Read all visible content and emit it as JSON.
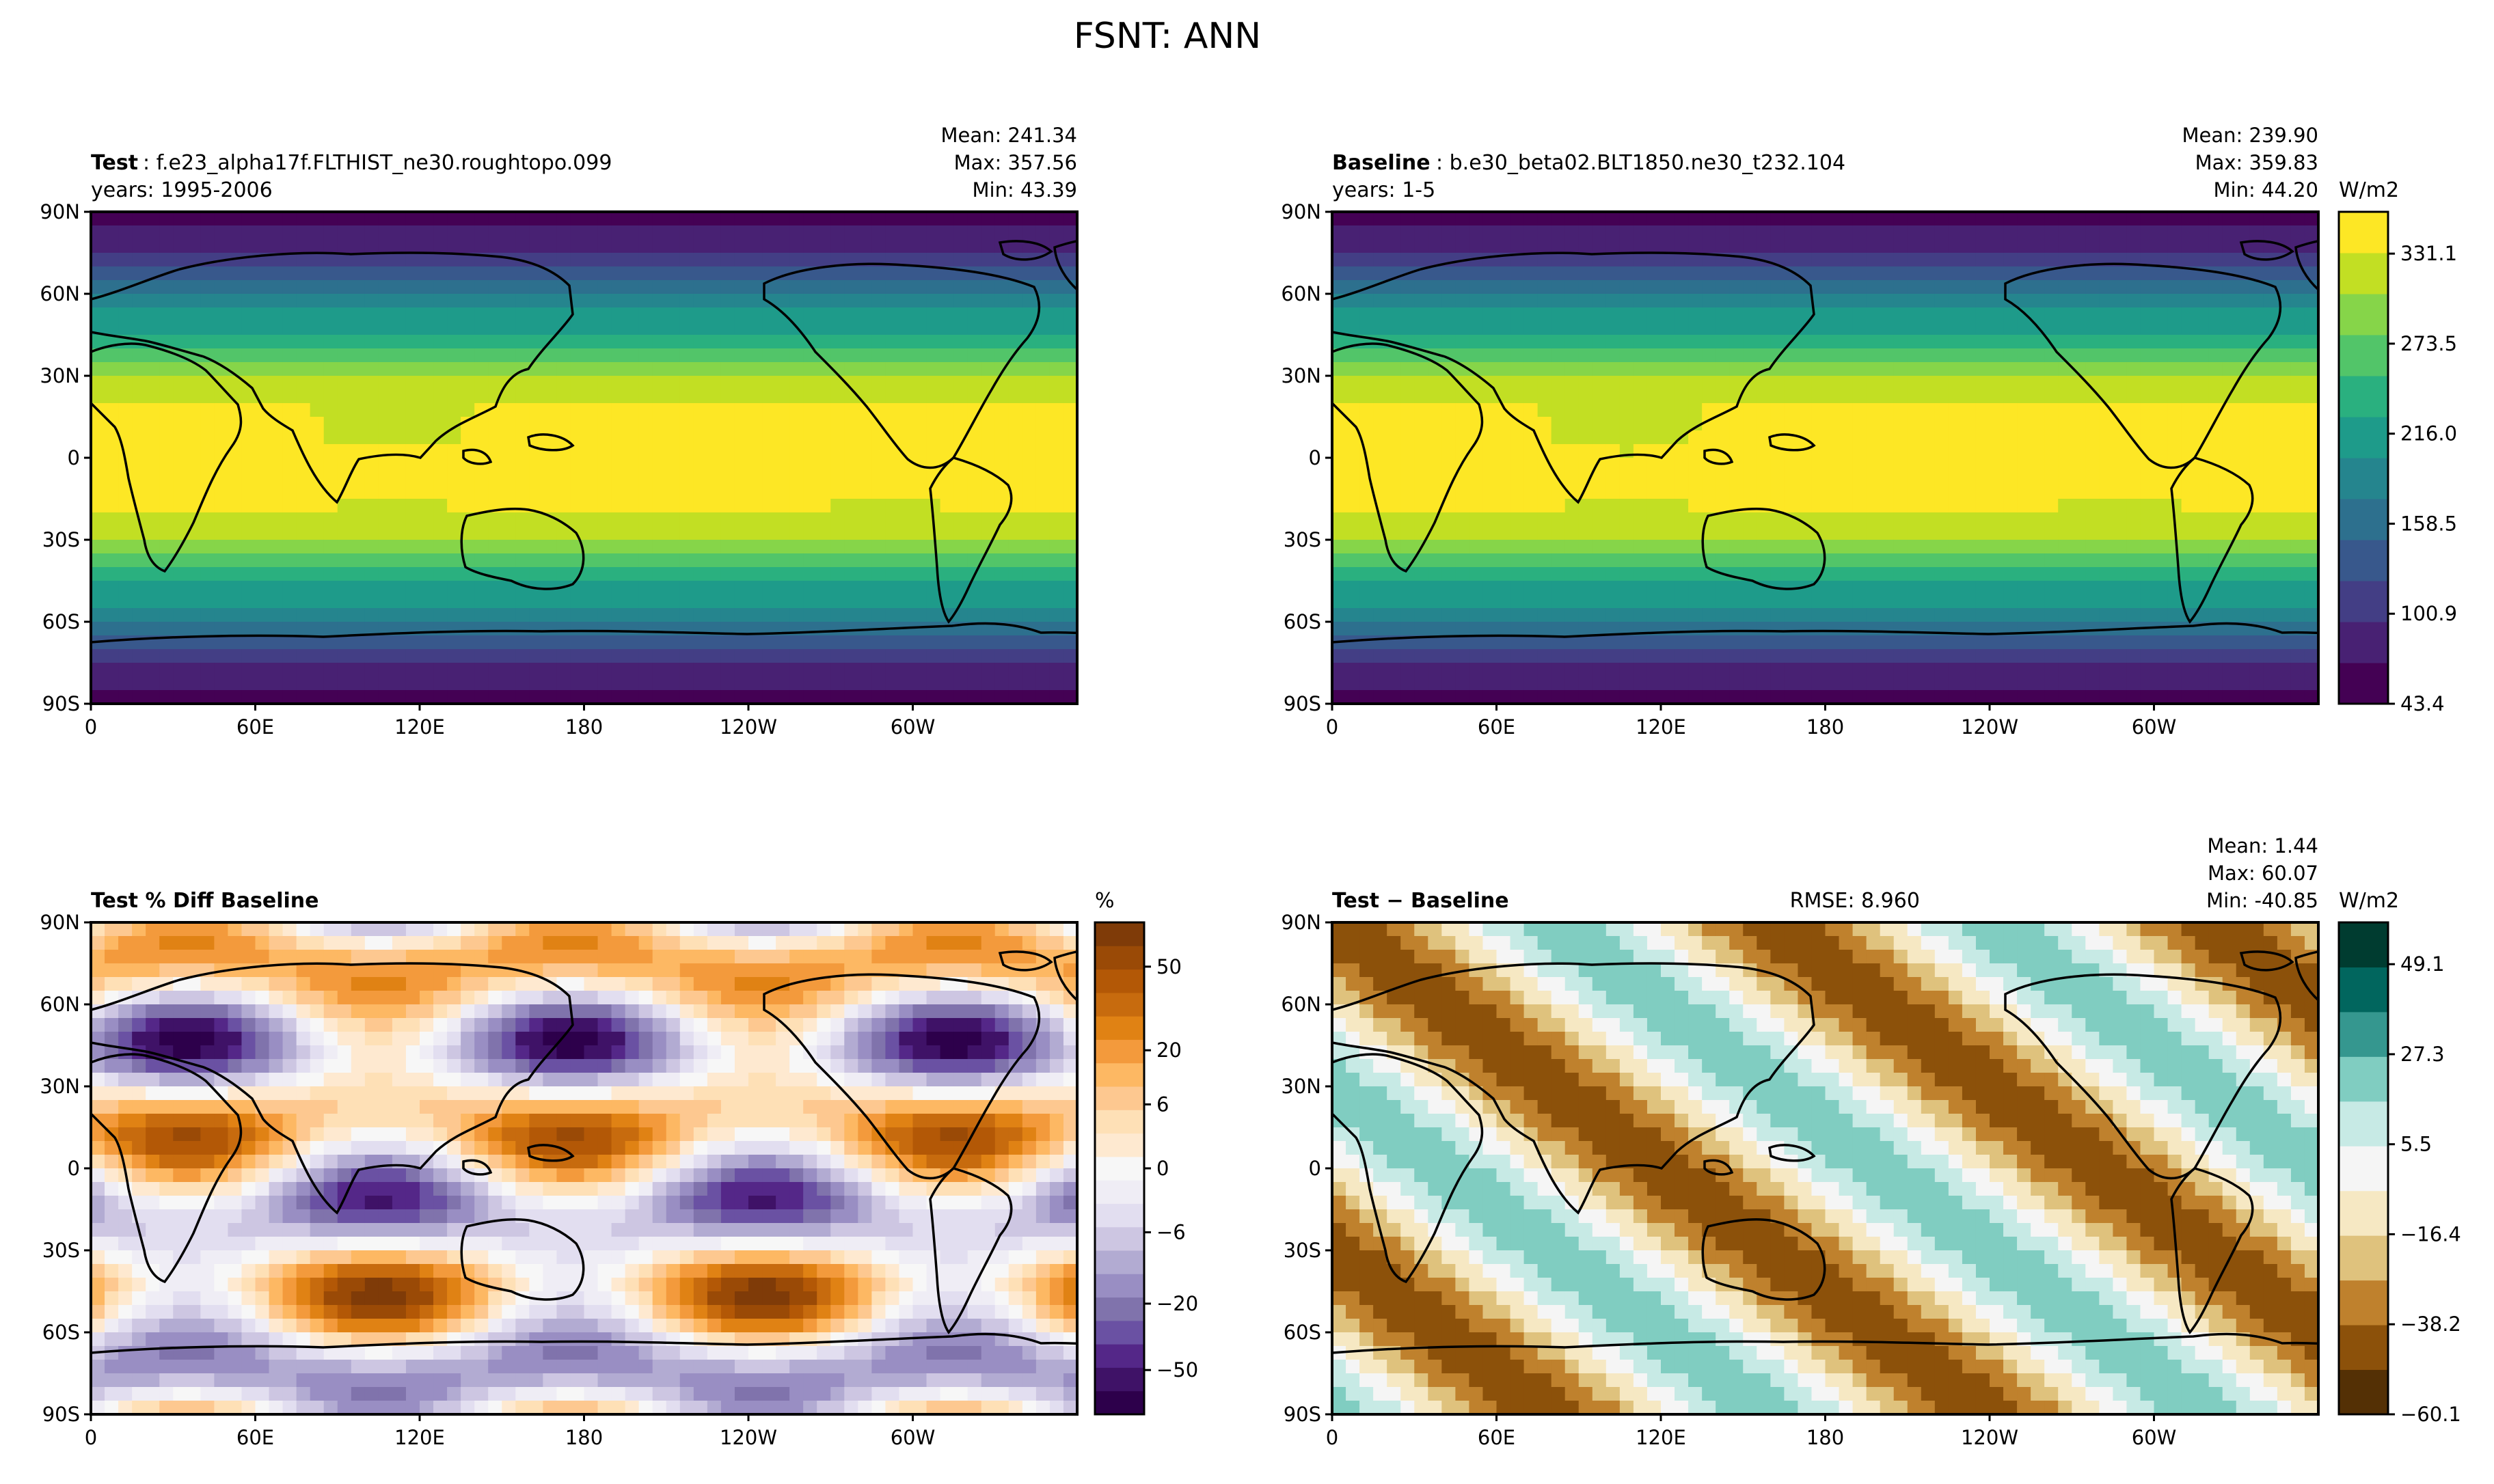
{
  "figure": {
    "title": "FSNT: ANN"
  },
  "axes": {
    "lat_ticks": [
      "90N",
      "60N",
      "30N",
      "0",
      "30S",
      "60S",
      "90S"
    ],
    "lon_ticks": [
      "0",
      "60E",
      "120E",
      "180",
      "120W",
      "60W"
    ]
  },
  "colors": {
    "viridis": [
      "#440154",
      "#482173",
      "#433e85",
      "#38588c",
      "#2d708e",
      "#25858e",
      "#1e9b8a",
      "#2ab07f",
      "#52c569",
      "#86d549",
      "#c2df23",
      "#fde725"
    ],
    "puor": [
      "#2d004b",
      "#3f1267",
      "#542788",
      "#6a51a3",
      "#8073ac",
      "#998ec3",
      "#b2abd2",
      "#cdc6e2",
      "#e2def0",
      "#efedf5",
      "#f7f7f7",
      "#fee9d0",
      "#fee0b6",
      "#fdc890",
      "#fdb863",
      "#f39a3c",
      "#e08214",
      "#c76b0e",
      "#b35806",
      "#9a4a06",
      "#7f3b08"
    ],
    "brbg": [
      "#543005",
      "#8c510a",
      "#bf812d",
      "#dfc27d",
      "#f6e8c3",
      "#f5f5f5",
      "#c7eae5",
      "#80cdc1",
      "#35978f",
      "#01665e",
      "#003c30"
    ]
  },
  "panels": [
    {
      "label": "Test",
      "case": ": f.e23_alpha17f.FLTHIST_ne30.roughtopo.099",
      "years": "years: 1995-2006",
      "stats": [
        "Mean: 241.34",
        "Max: 357.56",
        "Min: 43.39"
      ]
    },
    {
      "label": "Baseline",
      "case": ": b.e30_beta02.BLT1850.ne30_t232.104",
      "years": "years: 1-5",
      "stats": [
        "Mean: 239.90",
        "Max: 359.83",
        "Min: 44.20"
      ]
    },
    {
      "label": "Test % Diff Baseline",
      "case": "",
      "years": "",
      "stats": []
    },
    {
      "label": "Test − Baseline",
      "case": "",
      "years": "",
      "rmse": "RMSE: 8.960",
      "stats": [
        "Mean:  1.44",
        "Max: 60.07",
        "Min: -40.85"
      ]
    }
  ],
  "colorbars": [
    {
      "unit": "W/m2",
      "ticks": [
        "331.1",
        "273.5",
        "216.0",
        "158.5",
        "100.9",
        "43.4"
      ]
    },
    {
      "unit": "%",
      "ticks": [
        "50",
        "20",
        "6",
        "0",
        "−6",
        "−20",
        "−50"
      ]
    },
    {
      "unit": "W/m2",
      "ticks": [
        "49.1",
        "27.3",
        "5.5",
        "−16.4",
        "−38.2",
        "−60.1"
      ]
    }
  ],
  "chart_data": [
    {
      "type": "heatmap",
      "title": "Test",
      "variable": "FSNT",
      "season": "ANN",
      "units": "W/m2",
      "levels_labeled": [
        43.4,
        100.9,
        158.5,
        216.0,
        273.5,
        331.1
      ],
      "mean": 241.34,
      "max": 357.56,
      "min": 43.39,
      "lat_range": [
        -90,
        90
      ],
      "lon_range": [
        0,
        360
      ]
    },
    {
      "type": "heatmap",
      "title": "Baseline",
      "variable": "FSNT",
      "season": "ANN",
      "units": "W/m2",
      "levels_labeled": [
        43.4,
        100.9,
        158.5,
        216.0,
        273.5,
        331.1
      ],
      "mean": 239.9,
      "max": 359.83,
      "min": 44.2,
      "lat_range": [
        -90,
        90
      ],
      "lon_range": [
        0,
        360
      ]
    },
    {
      "type": "heatmap",
      "title": "Test % Diff Baseline",
      "units": "%",
      "levels_labeled": [
        -50,
        -20,
        -6,
        0,
        6,
        20,
        50
      ],
      "lat_range": [
        -90,
        90
      ],
      "lon_range": [
        0,
        360
      ]
    },
    {
      "type": "heatmap",
      "title": "Test − Baseline",
      "units": "W/m2",
      "levels_labeled": [
        -60.1,
        -38.2,
        -16.4,
        5.5,
        27.3,
        49.1
      ],
      "rmse": 8.96,
      "mean": 1.44,
      "max": 60.07,
      "min": -40.85,
      "lat_range": [
        -90,
        90
      ],
      "lon_range": [
        0,
        360
      ]
    }
  ]
}
